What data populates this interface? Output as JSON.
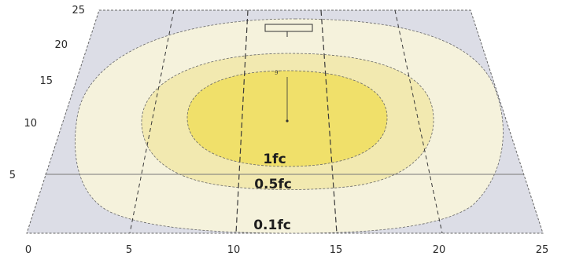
{
  "diagram": {
    "x_ticks": [
      "0",
      "5",
      "10",
      "15",
      "20",
      "25"
    ],
    "y_ticks": [
      "25",
      "20",
      "15",
      "10",
      "5"
    ],
    "contours": [
      {
        "label": "0.1fc",
        "fill": "#f5f2dc"
      },
      {
        "label": "0.5fc",
        "fill": "#f2e9b0"
      },
      {
        "label": "1fc",
        "fill": "#f0e06a"
      }
    ],
    "fixture_height_label": "9'",
    "colors": {
      "floor": "#dcdde6",
      "outline": "#444444"
    }
  }
}
